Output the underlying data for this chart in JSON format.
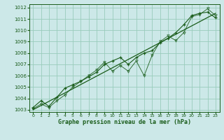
{
  "title": "Graphe pression niveau de la mer (hPa)",
  "bg_color": "#cce8e8",
  "grid_color": "#99ccbb",
  "line_color": "#1a5c1a",
  "xlim": [
    -0.5,
    23.5
  ],
  "ylim": [
    1002.8,
    1012.3
  ],
  "xticks": [
    0,
    1,
    2,
    3,
    4,
    5,
    6,
    7,
    8,
    9,
    10,
    11,
    12,
    13,
    14,
    15,
    16,
    17,
    18,
    19,
    20,
    21,
    22,
    23
  ],
  "yticks": [
    1003,
    1004,
    1005,
    1006,
    1007,
    1008,
    1009,
    1010,
    1011,
    1012
  ],
  "series_main": [
    1003.2,
    1003.8,
    1003.3,
    1004.1,
    1004.9,
    1005.2,
    1005.5,
    1005.9,
    1006.3,
    1007.0,
    1007.3,
    1007.6,
    1007.0,
    1007.6,
    1008.0,
    1008.2,
    1008.9,
    1009.3,
    1009.8,
    1010.5,
    1011.3,
    1011.5,
    1011.6,
    1011.1
  ],
  "series_alt": [
    1003.1,
    1003.5,
    1003.2,
    1003.8,
    1004.3,
    1005.0,
    1005.5,
    1006.0,
    1006.5,
    1007.2,
    1006.4,
    1006.9,
    1006.4,
    1007.3,
    1006.0,
    1007.8,
    1009.0,
    1009.5,
    1009.1,
    1009.8,
    1011.2,
    1011.4,
    1011.9,
    1011.3
  ],
  "trend_x": [
    0,
    23
  ],
  "trend_y": [
    1003.0,
    1011.5
  ]
}
